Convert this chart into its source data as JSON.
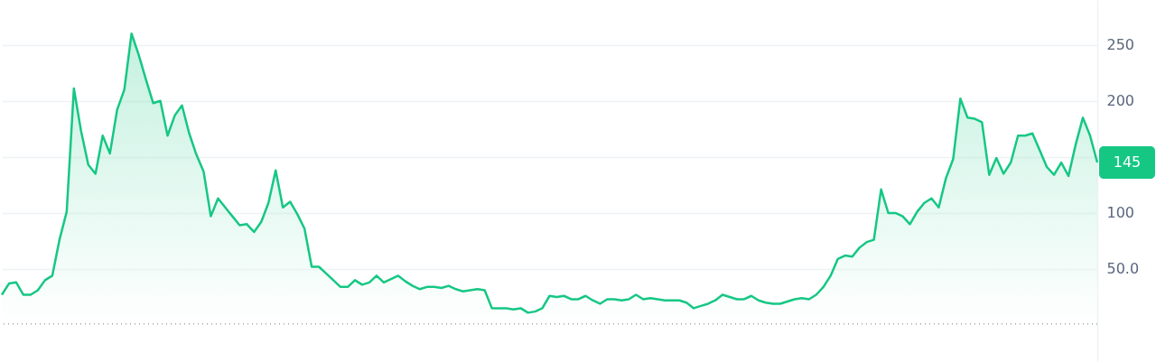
{
  "chart_data": {
    "type": "area",
    "categories": [
      null,
      null,
      null,
      null,
      null,
      null,
      null,
      null,
      null,
      null,
      null,
      null,
      null,
      null,
      null,
      null,
      null,
      null,
      null,
      null,
      null,
      null,
      null,
      null,
      null,
      null,
      null,
      null,
      null,
      null,
      null,
      null,
      null,
      null,
      null,
      null,
      null,
      null,
      null,
      null,
      null,
      null,
      null,
      null,
      null,
      null,
      null,
      null,
      null,
      null,
      null,
      null,
      null,
      null,
      null,
      null,
      null,
      null,
      null,
      null,
      null,
      null,
      null,
      null,
      null,
      null,
      null,
      null,
      null,
      null,
      null,
      null,
      null,
      null,
      null,
      null,
      null,
      null,
      null,
      null,
      null,
      null,
      null,
      null,
      null,
      null,
      null,
      null,
      null,
      null,
      null,
      null,
      null,
      null,
      null,
      null,
      null,
      null,
      null,
      null,
      null,
      null,
      null,
      null,
      null,
      null,
      null,
      null,
      null,
      null,
      null,
      null,
      null,
      null,
      null,
      null,
      null,
      null,
      null,
      null,
      null,
      null,
      null,
      null,
      null,
      null,
      null,
      null,
      null,
      null,
      null,
      null,
      null,
      null,
      null,
      null,
      null,
      null,
      null,
      null,
      null,
      null,
      null,
      null,
      null,
      null,
      null,
      null,
      null,
      null,
      null,
      null,
      null
    ],
    "series": [
      {
        "color": "#16c784",
        "values": [
          27,
          37,
          38,
          27,
          27,
          31,
          40,
          44,
          76,
          101,
          211,
          173,
          143,
          135,
          169,
          153,
          192,
          210,
          260,
          241,
          219,
          198,
          200,
          169,
          187,
          196,
          171,
          152,
          137,
          97,
          113,
          105,
          97,
          89,
          90,
          83,
          92,
          109,
          138,
          105,
          110,
          99,
          86,
          52,
          52,
          46,
          40,
          34,
          34,
          40,
          36,
          38,
          44,
          38,
          41,
          44,
          39,
          35,
          32,
          34,
          34,
          33,
          35,
          32,
          30,
          31,
          32,
          31,
          15,
          15,
          15,
          14,
          15,
          11,
          12,
          15,
          26,
          25,
          26,
          23,
          23,
          26,
          22,
          19,
          23,
          23,
          22,
          23,
          27,
          23,
          24,
          23,
          22,
          22,
          22,
          20,
          15,
          17,
          19,
          22,
          27,
          25,
          23,
          23,
          26,
          22,
          20,
          19,
          19,
          21,
          23,
          24,
          23,
          27,
          34,
          44,
          59,
          62,
          61,
          69,
          74,
          76,
          121,
          100,
          100,
          97,
          90,
          101,
          109,
          113,
          105,
          131,
          148,
          202,
          185,
          184,
          181,
          134,
          149,
          135,
          145,
          169,
          169,
          171,
          156,
          141,
          134,
          145,
          133,
          161,
          185,
          169,
          145
        ]
      }
    ],
    "ylim": [
      -33,
      290
    ],
    "yticks": [
      {
        "value": 50,
        "label": "50.0"
      },
      100,
      {
        "value": 150,
        "label": null
      },
      200,
      250
    ],
    "grid": "y",
    "ref_lines": [
      {
        "axis": "y",
        "value": 1,
        "color": "#a0a6b0",
        "line_style": "dotted"
      }
    ],
    "annotations": [
      "145"
    ]
  }
}
